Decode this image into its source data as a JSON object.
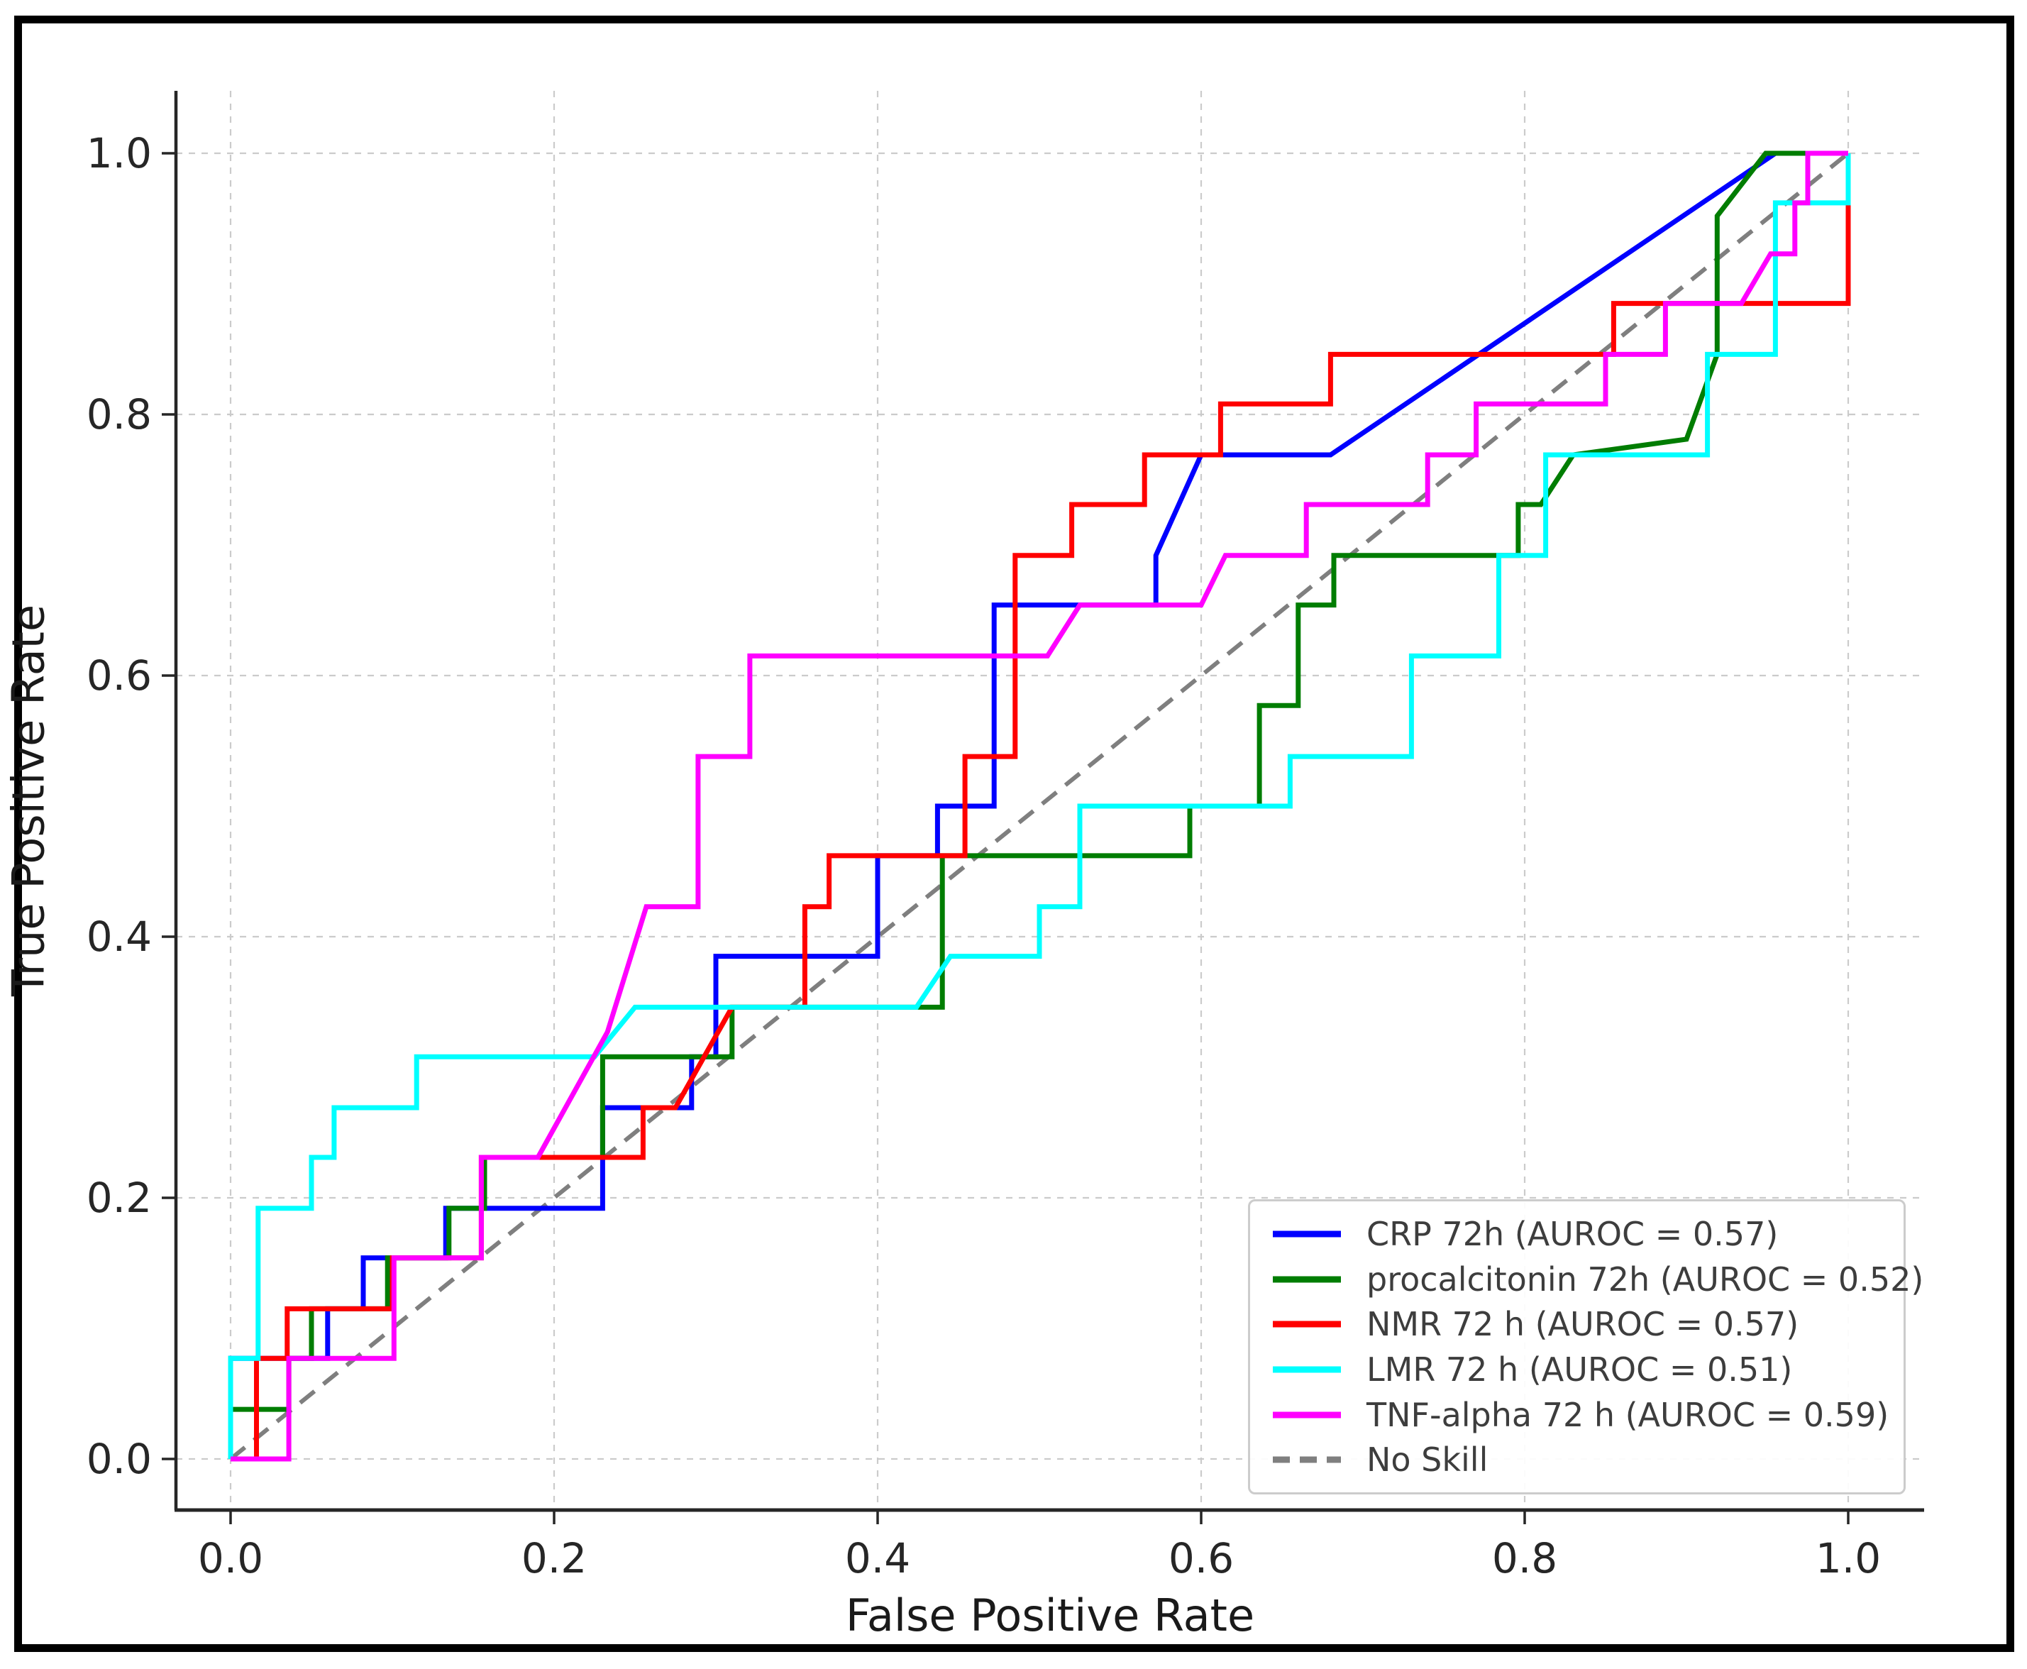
{
  "figure": {
    "background": "#ffffff",
    "border_color": "#000000"
  },
  "axis": {
    "xlabel": "False Positive Rate",
    "ylabel": "True Positive Rate"
  },
  "legend": {
    "position": "lower right",
    "entries": [
      {
        "label": "CRP 72h (AUROC = 0.57)",
        "color": "#0000ff",
        "dash": null
      },
      {
        "label": "procalcitonin 72h (AUROC = 0.52)",
        "color": "#007d02",
        "dash": null
      },
      {
        "label": "NMR 72 h (AUROC = 0.57)",
        "color": "#ff0000",
        "dash": null
      },
      {
        "label": "LMR 72 h (AUROC = 0.51)",
        "color": "#00ffff",
        "dash": null
      },
      {
        "label": "TNF-alpha 72 h (AUROC = 0.59)",
        "color": "#ff00ff",
        "dash": null
      },
      {
        "label": "No Skill",
        "color": "#7f7f7f",
        "dash": "26 16"
      }
    ]
  },
  "chart_data": {
    "type": "line",
    "title": "",
    "xlabel": "False Positive Rate",
    "ylabel": "True Positive Rate",
    "xlim": [
      -0.034,
      1.047
    ],
    "ylim": [
      -0.039,
      1.048
    ],
    "grid": true,
    "grid_color": "#cbcbcb",
    "x_ticks": [
      0.0,
      0.2,
      0.4,
      0.6,
      0.8,
      1.0
    ],
    "x_tick_labels": [
      "0.0",
      "0.2",
      "0.4",
      "0.6",
      "0.8",
      "1.0"
    ],
    "y_ticks": [
      0.0,
      0.2,
      0.4,
      0.6,
      0.8,
      1.0
    ],
    "y_tick_labels": [
      "0.0",
      "0.2",
      "0.4",
      "0.6",
      "0.8",
      "1.0"
    ],
    "legend_position": "lower right",
    "series": [
      {
        "name": "CRP 72h (AUROC = 0.57)",
        "auroc": 0.57,
        "color": "#0000ff",
        "dash": null,
        "points": [
          [
            0,
            0
          ],
          [
            0,
            0.077
          ],
          [
            0.06,
            0.077
          ],
          [
            0.06,
            0.115
          ],
          [
            0.082,
            0.115
          ],
          [
            0.082,
            0.154
          ],
          [
            0.133,
            0.154
          ],
          [
            0.133,
            0.192
          ],
          [
            0.23,
            0.192
          ],
          [
            0.23,
            0.269
          ],
          [
            0.285,
            0.269
          ],
          [
            0.285,
            0.308
          ],
          [
            0.3,
            0.308
          ],
          [
            0.3,
            0.385
          ],
          [
            0.4,
            0.385
          ],
          [
            0.4,
            0.462
          ],
          [
            0.437,
            0.462
          ],
          [
            0.437,
            0.5
          ],
          [
            0.472,
            0.5
          ],
          [
            0.472,
            0.654
          ],
          [
            0.572,
            0.654
          ],
          [
            0.572,
            0.692
          ],
          [
            0.6,
            0.769
          ],
          [
            0.68,
            0.769
          ],
          [
            0.955,
            1
          ],
          [
            1,
            1
          ]
        ]
      },
      {
        "name": "procalcitonin 72h (AUROC = 0.52)",
        "auroc": 0.52,
        "color": "#007d02",
        "dash": null,
        "points": [
          [
            0,
            0
          ],
          [
            0,
            0.038
          ],
          [
            0.036,
            0.038
          ],
          [
            0.036,
            0.077
          ],
          [
            0.05,
            0.077
          ],
          [
            0.05,
            0.115
          ],
          [
            0.097,
            0.115
          ],
          [
            0.097,
            0.154
          ],
          [
            0.135,
            0.154
          ],
          [
            0.135,
            0.192
          ],
          [
            0.157,
            0.192
          ],
          [
            0.157,
            0.231
          ],
          [
            0.23,
            0.231
          ],
          [
            0.23,
            0.308
          ],
          [
            0.31,
            0.308
          ],
          [
            0.31,
            0.346
          ],
          [
            0.44,
            0.346
          ],
          [
            0.44,
            0.462
          ],
          [
            0.593,
            0.462
          ],
          [
            0.593,
            0.5
          ],
          [
            0.636,
            0.5
          ],
          [
            0.636,
            0.577
          ],
          [
            0.66,
            0.577
          ],
          [
            0.66,
            0.654
          ],
          [
            0.682,
            0.654
          ],
          [
            0.682,
            0.692
          ],
          [
            0.796,
            0.692
          ],
          [
            0.796,
            0.731
          ],
          [
            0.81,
            0.731
          ],
          [
            0.83,
            0.769
          ],
          [
            0.9,
            0.781
          ],
          [
            0.919,
            0.846
          ],
          [
            0.919,
            0.952
          ],
          [
            0.949,
            1
          ],
          [
            1,
            1
          ]
        ]
      },
      {
        "name": "NMR 72 h (AUROC = 0.57)",
        "auroc": 0.57,
        "color": "#ff0000",
        "dash": null,
        "points": [
          [
            0,
            0
          ],
          [
            0.016,
            0
          ],
          [
            0.016,
            0.077
          ],
          [
            0.035,
            0.077
          ],
          [
            0.035,
            0.115
          ],
          [
            0.1,
            0.115
          ],
          [
            0.1,
            0.154
          ],
          [
            0.155,
            0.154
          ],
          [
            0.155,
            0.231
          ],
          [
            0.255,
            0.231
          ],
          [
            0.255,
            0.269
          ],
          [
            0.275,
            0.269
          ],
          [
            0.31,
            0.346
          ],
          [
            0.355,
            0.346
          ],
          [
            0.355,
            0.423
          ],
          [
            0.37,
            0.423
          ],
          [
            0.37,
            0.462
          ],
          [
            0.454,
            0.462
          ],
          [
            0.454,
            0.538
          ],
          [
            0.485,
            0.538
          ],
          [
            0.485,
            0.692
          ],
          [
            0.52,
            0.692
          ],
          [
            0.52,
            0.731
          ],
          [
            0.565,
            0.731
          ],
          [
            0.565,
            0.769
          ],
          [
            0.612,
            0.769
          ],
          [
            0.612,
            0.808
          ],
          [
            0.68,
            0.808
          ],
          [
            0.68,
            0.846
          ],
          [
            0.855,
            0.846
          ],
          [
            0.855,
            0.885
          ],
          [
            1,
            0.885
          ],
          [
            1,
            1
          ]
        ]
      },
      {
        "name": "LMR 72 h (AUROC = 0.51)",
        "auroc": 0.51,
        "color": "#00ffff",
        "dash": null,
        "points": [
          [
            0,
            0
          ],
          [
            0,
            0.077
          ],
          [
            0.017,
            0.077
          ],
          [
            0.017,
            0.192
          ],
          [
            0.05,
            0.192
          ],
          [
            0.05,
            0.231
          ],
          [
            0.064,
            0.231
          ],
          [
            0.064,
            0.269
          ],
          [
            0.115,
            0.269
          ],
          [
            0.115,
            0.308
          ],
          [
            0.225,
            0.308
          ],
          [
            0.25,
            0.346
          ],
          [
            0.424,
            0.346
          ],
          [
            0.445,
            0.385
          ],
          [
            0.5,
            0.385
          ],
          [
            0.5,
            0.423
          ],
          [
            0.525,
            0.423
          ],
          [
            0.525,
            0.5
          ],
          [
            0.655,
            0.5
          ],
          [
            0.655,
            0.538
          ],
          [
            0.73,
            0.538
          ],
          [
            0.73,
            0.615
          ],
          [
            0.784,
            0.615
          ],
          [
            0.784,
            0.692
          ],
          [
            0.813,
            0.692
          ],
          [
            0.813,
            0.769
          ],
          [
            0.913,
            0.769
          ],
          [
            0.913,
            0.846
          ],
          [
            0.955,
            0.846
          ],
          [
            0.955,
            0.962
          ],
          [
            1,
            0.962
          ],
          [
            1,
            1
          ]
        ]
      },
      {
        "name": "TNF-alpha 72 h (AUROC = 0.59)",
        "auroc": 0.59,
        "color": "#ff00ff",
        "dash": null,
        "points": [
          [
            0,
            0
          ],
          [
            0.036,
            0
          ],
          [
            0.036,
            0.077
          ],
          [
            0.101,
            0.077
          ],
          [
            0.101,
            0.154
          ],
          [
            0.155,
            0.154
          ],
          [
            0.155,
            0.231
          ],
          [
            0.19,
            0.231
          ],
          [
            0.233,
            0.327
          ],
          [
            0.257,
            0.423
          ],
          [
            0.289,
            0.423
          ],
          [
            0.289,
            0.538
          ],
          [
            0.321,
            0.538
          ],
          [
            0.321,
            0.615
          ],
          [
            0.505,
            0.615
          ],
          [
            0.525,
            0.654
          ],
          [
            0.6,
            0.654
          ],
          [
            0.615,
            0.692
          ],
          [
            0.665,
            0.692
          ],
          [
            0.665,
            0.731
          ],
          [
            0.74,
            0.731
          ],
          [
            0.74,
            0.769
          ],
          [
            0.77,
            0.769
          ],
          [
            0.77,
            0.808
          ],
          [
            0.85,
            0.808
          ],
          [
            0.85,
            0.846
          ],
          [
            0.887,
            0.846
          ],
          [
            0.887,
            0.885
          ],
          [
            0.934,
            0.885
          ],
          [
            0.952,
            0.923
          ],
          [
            0.967,
            0.923
          ],
          [
            0.967,
            0.962
          ],
          [
            0.975,
            0.962
          ],
          [
            0.975,
            1
          ],
          [
            1,
            1
          ]
        ]
      },
      {
        "name": "No Skill",
        "auroc": 0.5,
        "color": "#7f7f7f",
        "dash": "26 16",
        "points": [
          [
            0,
            0
          ],
          [
            1,
            1
          ]
        ]
      }
    ]
  }
}
